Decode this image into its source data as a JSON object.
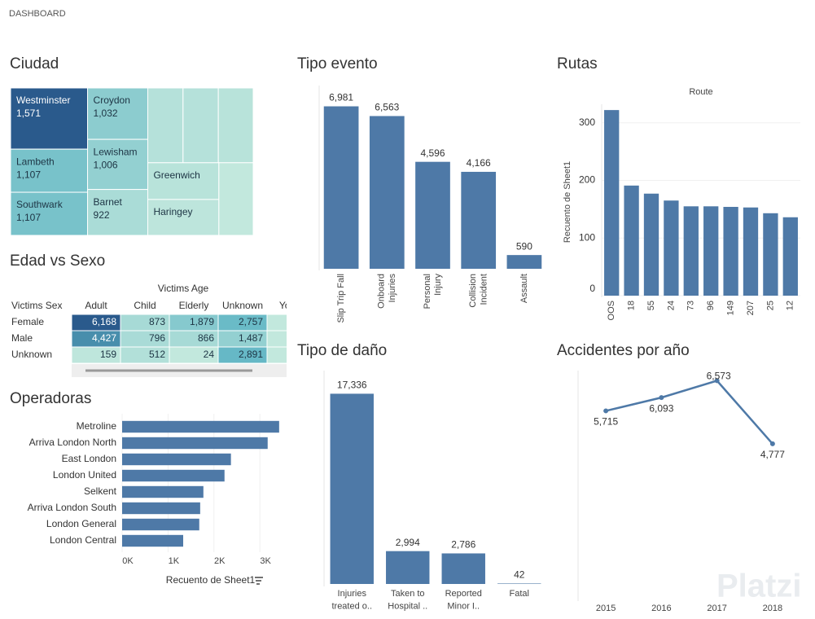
{
  "header": {
    "title": "DASHBOARD"
  },
  "chart_data": [
    {
      "type": "treemap",
      "title": "Ciudad",
      "categories": [
        "Westminster",
        "Lambeth",
        "Southwark",
        "Croydon",
        "Lewisham",
        "Barnet",
        null,
        null,
        null,
        "Greenwich",
        "Haringey",
        null
      ],
      "values": [
        1571,
        1107,
        1107,
        1032,
        1006,
        922,
        880,
        880,
        870,
        871,
        852,
        832
      ],
      "value_labels": [
        "1,571",
        "1,107",
        "1,107",
        "1,032",
        "1,006",
        "922",
        null,
        null,
        null,
        null,
        null,
        null
      ],
      "color_scale": [
        "#c2e8dd",
        "#5fb5c4",
        "#2a5a8c"
      ]
    },
    {
      "type": "heatmap",
      "title": "Edad vs Sexo",
      "column_title": "Victims Age",
      "row_title": "Victims Sex",
      "columns": [
        "Adult",
        "Child",
        "Elderly",
        "Unknown",
        "Youth"
      ],
      "rows": [
        "Female",
        "Male",
        "Unknown"
      ],
      "values": [
        [
          6168,
          873,
          1879,
          2757,
          null
        ],
        [
          4427,
          796,
          866,
          1487,
          null
        ],
        [
          159,
          512,
          24,
          2891,
          null
        ]
      ],
      "value_labels": [
        [
          "6,168",
          "873",
          "1,879",
          "2,757",
          null
        ],
        [
          "4,427",
          "796",
          "866",
          "1,487",
          null
        ],
        [
          "159",
          "512",
          "24",
          "2,891",
          null
        ]
      ],
      "color_scale": [
        "#c2e8dd",
        "#5fb5c4",
        "#2a5a8c"
      ]
    },
    {
      "type": "bar",
      "orientation": "horizontal",
      "title": "Operadoras",
      "categories": [
        "Metroline",
        "Arriva London North",
        "East London",
        "London United",
        "Selkent",
        "Arriva London South",
        "London General",
        "London Central"
      ],
      "values": [
        3420,
        3170,
        2370,
        2230,
        1770,
        1700,
        1680,
        1330
      ],
      "color": "#4e79a7",
      "xlim": [
        0,
        3600
      ],
      "xticks": [
        {
          "value": 0,
          "label": "0K"
        },
        {
          "value": 1000,
          "label": "1K"
        },
        {
          "value": 2000,
          "label": "2K"
        },
        {
          "value": 3000,
          "label": "3K"
        }
      ],
      "xlabel": "Recuento de Sheet1",
      "grid": true
    },
    {
      "type": "bar",
      "title": "Tipo evento",
      "categories": [
        "Slip Trip Fall",
        "Onboard Injuries",
        "Personal Injury",
        "Collision Incident",
        "Assault"
      ],
      "values": [
        6981,
        6563,
        4596,
        4166,
        590
      ],
      "value_labels": [
        "6,981",
        "6,563",
        "4,596",
        "4,166",
        "590"
      ],
      "color": "#4e79a7",
      "ylim": [
        0,
        7000
      ]
    },
    {
      "type": "bar",
      "title": "Rutas",
      "xlabel": "Route",
      "ylabel": "Recuento de Sheet1",
      "categories": [
        "OOS",
        "18",
        "55",
        "24",
        "73",
        "96",
        "149",
        "207",
        "25",
        "12"
      ],
      "values": [
        322,
        191,
        177,
        165,
        155,
        155,
        154,
        153,
        143,
        136
      ],
      "color": "#4e79a7",
      "ylim": [
        0,
        325
      ],
      "yticks": [
        0,
        100,
        200,
        300
      ],
      "grid": true
    },
    {
      "type": "bar",
      "title": "Tipo de daño",
      "categories": [
        "Injuries treated o..",
        "Taken to Hospital ..",
        "Reported Minor I..",
        "Fatal"
      ],
      "values": [
        17336,
        2994,
        2786,
        42
      ],
      "value_labels": [
        "17,336",
        "2,994",
        "2,786",
        "42"
      ],
      "color": "#4e79a7",
      "ylim": [
        0,
        19000
      ]
    },
    {
      "type": "line",
      "title": "Accidentes por año",
      "x": [
        2015,
        2016,
        2017,
        2018
      ],
      "values": [
        5715,
        6093,
        6573,
        4777
      ],
      "value_labels": [
        "5,715",
        "6,093",
        "6,573",
        "4,777"
      ],
      "color": "#4e79a7",
      "xlim": [
        2014.5,
        2018.5
      ],
      "xticks": [
        2015,
        2016,
        2017,
        2018
      ],
      "ylim": [
        0,
        7000
      ]
    }
  ],
  "watermark": "Platzi"
}
